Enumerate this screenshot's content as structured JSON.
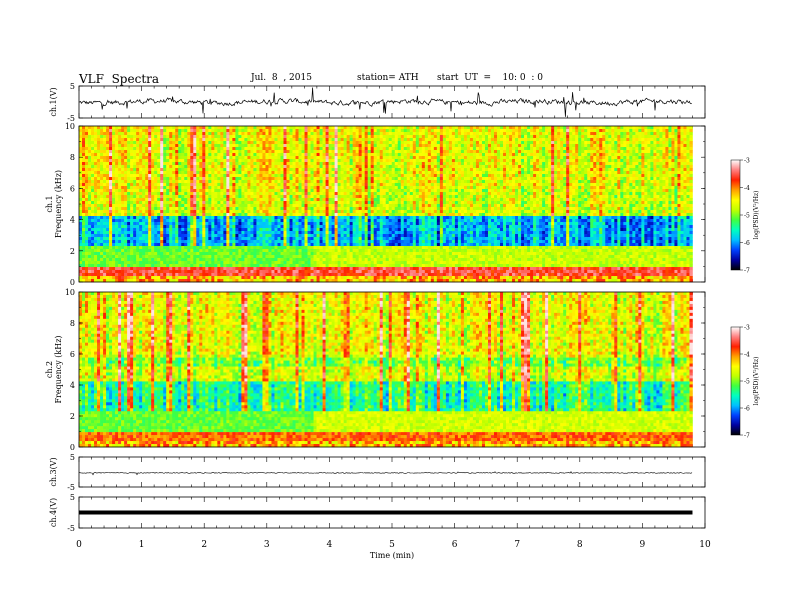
{
  "header": {
    "title": "VLF  Spectra",
    "date": "Jul.  8  , 2015",
    "station": "station= ATH",
    "start": "start  UT  =    10: 0  : 0"
  },
  "colorbar": {
    "label": "log(PSD)(V²/Hz)",
    "ticks": [
      "-3",
      "-4",
      "-5",
      "-6",
      "-7"
    ],
    "colors": [
      "#000000",
      "#0000a0",
      "#0040ff",
      "#00c0ff",
      "#00ffc0",
      "#40ff40",
      "#c0ff00",
      "#ffff00",
      "#ffa000",
      "#ff2000",
      "#ff8080",
      "#ffffff"
    ]
  },
  "chart_data": [
    {
      "type": "line",
      "ylabel": "ch.1(V)",
      "ylim": [
        -5,
        5
      ],
      "yticks": [
        "5",
        "-5"
      ],
      "description_series": "noisy waveform near 0 V with spikes",
      "x_range": [
        0,
        9.8
      ]
    },
    {
      "type": "heatmap",
      "ylabel": "ch.1\nFrequency  (kHz)",
      "ylabel_lines": [
        "ch.1",
        "Frequency  (kHz)"
      ],
      "ylim": [
        0,
        10
      ],
      "yticks": [
        "0",
        "2",
        "4",
        "6",
        "8",
        "10"
      ],
      "x_range": [
        0,
        9.8
      ],
      "z_range": [
        -7,
        -3
      ]
    },
    {
      "type": "heatmap",
      "ylabel_lines": [
        "ch.2",
        "Frequency  (kHz)"
      ],
      "ylim": [
        0,
        10
      ],
      "yticks": [
        "0",
        "2",
        "4",
        "6",
        "8",
        "10"
      ],
      "x_range": [
        0,
        9.8
      ],
      "z_range": [
        -7,
        -3
      ]
    },
    {
      "type": "line",
      "ylabel": "ch.3(V)",
      "ylim": [
        -5,
        5
      ],
      "yticks": [
        "5",
        "-5"
      ],
      "x_range": [
        0,
        9.8
      ]
    },
    {
      "type": "line",
      "ylabel": "ch.4(V)",
      "ylim": [
        -5,
        5
      ],
      "yticks": [
        "5",
        "-5"
      ],
      "x_range": [
        0,
        9.8
      ]
    }
  ],
  "xaxis": {
    "label": "Time  (min)",
    "ticks": [
      "0",
      "1",
      "2",
      "3",
      "4",
      "5",
      "6",
      "7",
      "8",
      "9",
      "10"
    ],
    "xlim": [
      0,
      10
    ]
  }
}
